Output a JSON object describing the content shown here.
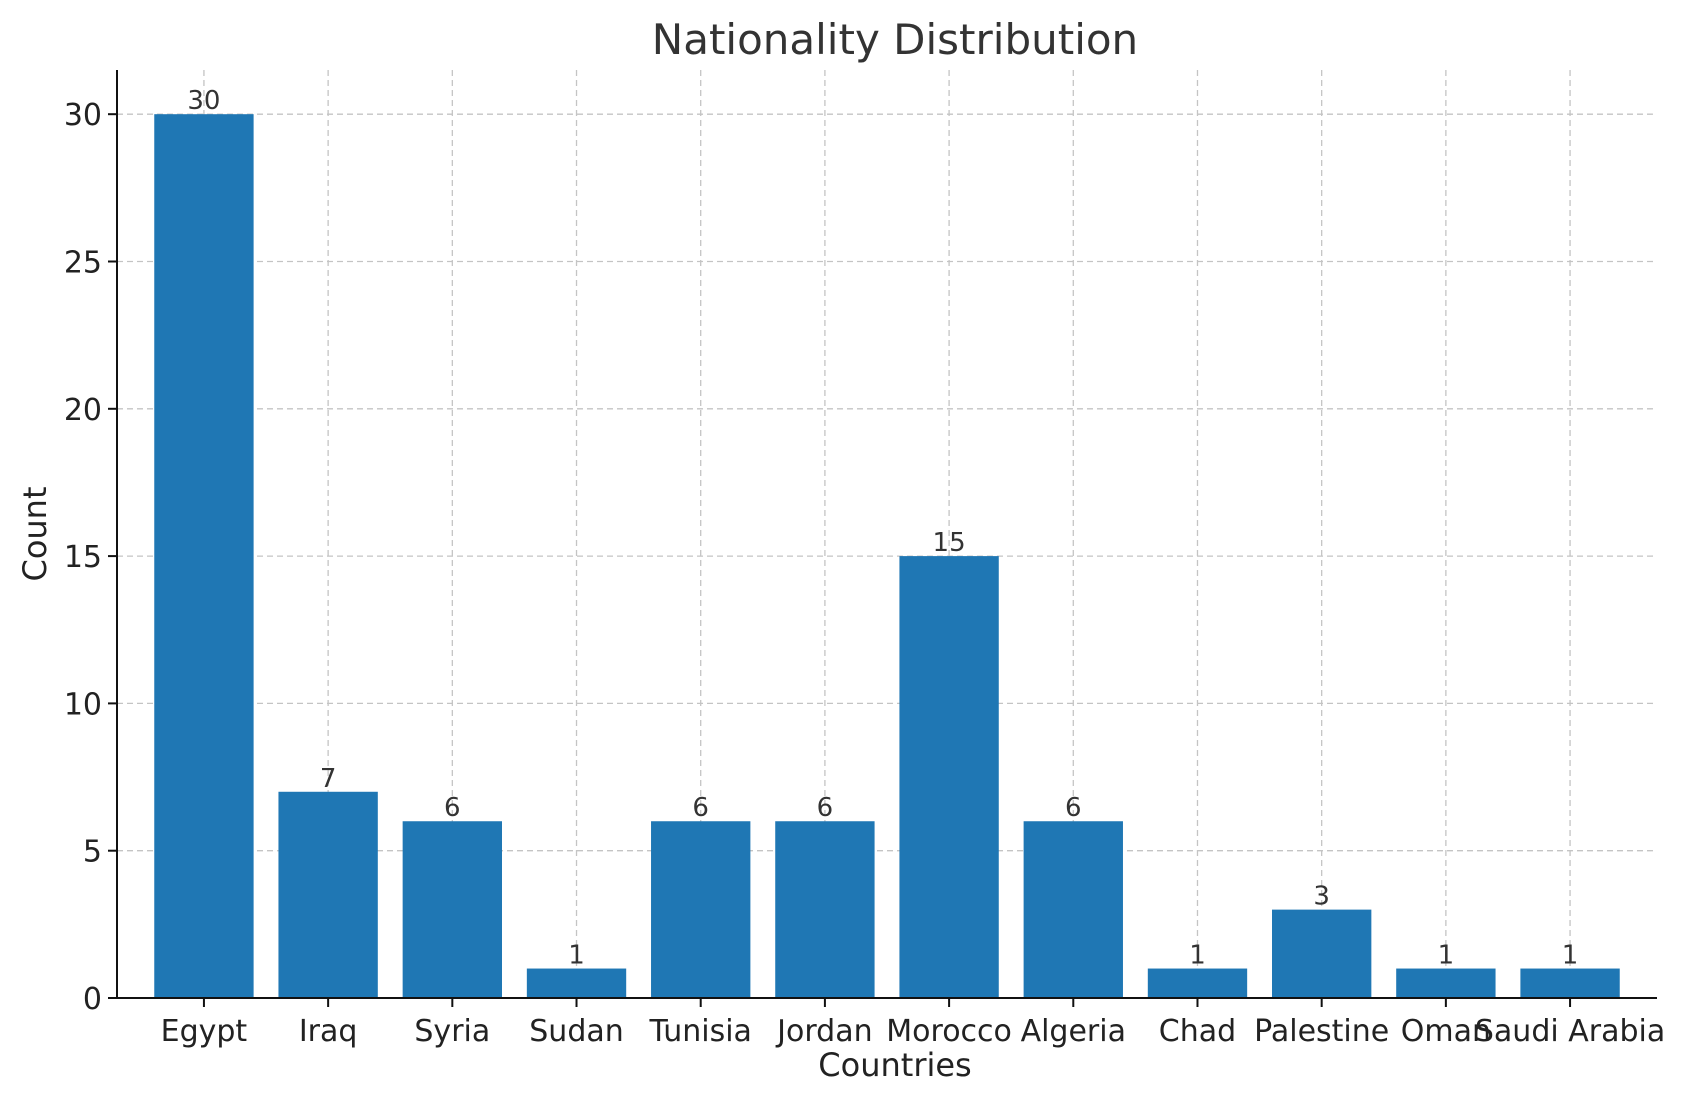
{
  "chart_data": {
    "type": "bar",
    "title": "Nationality Distribution",
    "xlabel": "Countries",
    "ylabel": "Count",
    "categories": [
      "Egypt",
      "Iraq",
      "Syria",
      "Sudan",
      "Tunisia",
      "Jordan",
      "Morocco",
      "Algeria",
      "Chad",
      "Palestine",
      "Oman",
      "Saudi Arabia"
    ],
    "values": [
      30,
      7,
      6,
      1,
      6,
      6,
      15,
      6,
      1,
      3,
      1,
      1
    ],
    "data_labels": [
      "30",
      "7",
      "6",
      "1",
      "6",
      "6",
      "15",
      "6",
      "1",
      "3",
      "1",
      "1"
    ],
    "yticks": [
      0,
      5,
      10,
      15,
      20,
      25,
      30
    ],
    "ylim": [
      0,
      31.5
    ],
    "grid": true,
    "bar_color": "#1f77b4"
  }
}
